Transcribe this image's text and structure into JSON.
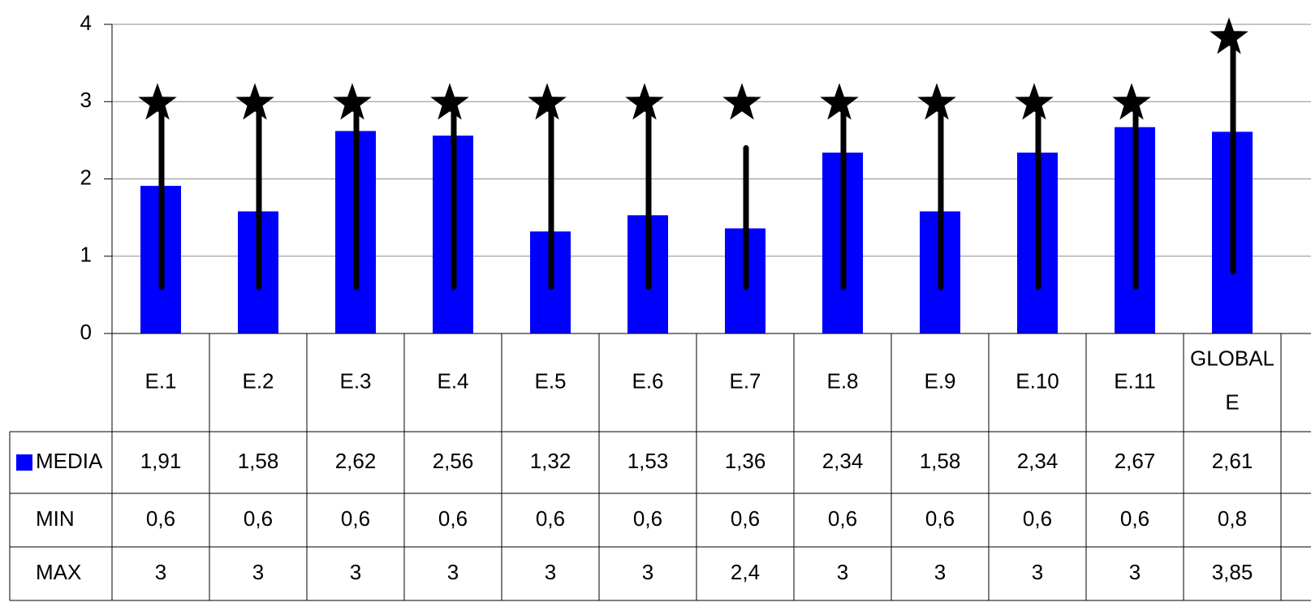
{
  "chart_data": {
    "type": "bar",
    "categories": [
      "E.1",
      "E.2",
      "E.3",
      "E.4",
      "E.5",
      "E.6",
      "E.7",
      "E.8",
      "E.9",
      "E.10",
      "E.11",
      "GLOBALE"
    ],
    "category_label_lines": [
      [
        "E.1"
      ],
      [
        "E.2"
      ],
      [
        "E.3"
      ],
      [
        "E.4"
      ],
      [
        "E.5"
      ],
      [
        "E.6"
      ],
      [
        "E.7"
      ],
      [
        "E.8"
      ],
      [
        "E.9"
      ],
      [
        "E.10"
      ],
      [
        "E.11"
      ],
      [
        "GLOBAL",
        "E"
      ]
    ],
    "ylim": [
      0,
      4
    ],
    "yticks": [
      "0",
      "1",
      "2",
      "3",
      "4"
    ],
    "grid": true,
    "series": [
      {
        "name": "MEDIA",
        "role": "bar",
        "color": "#0000ff",
        "values": [
          1.91,
          1.58,
          2.62,
          2.56,
          1.32,
          1.53,
          1.36,
          2.34,
          1.58,
          2.34,
          2.67,
          2.61
        ]
      },
      {
        "name": "MIN",
        "role": "range-low",
        "values": [
          0.6,
          0.6,
          0.6,
          0.6,
          0.6,
          0.6,
          0.6,
          0.6,
          0.6,
          0.6,
          0.6,
          0.8
        ]
      },
      {
        "name": "MAX",
        "role": "range-high-star",
        "values": [
          3,
          3,
          3,
          3,
          3,
          3,
          2.4,
          3,
          3,
          3,
          3,
          3.85
        ]
      }
    ],
    "table": {
      "rows": [
        {
          "label": "MEDIA",
          "legend_color": "#0000ff",
          "cells": [
            "1,91",
            "1,58",
            "2,62",
            "2,56",
            "1,32",
            "1,53",
            "1,36",
            "2,34",
            "1,58",
            "2,34",
            "2,67",
            "2,61"
          ]
        },
        {
          "label": "MIN",
          "cells": [
            "0,6",
            "0,6",
            "0,6",
            "0,6",
            "0,6",
            "0,6",
            "0,6",
            "0,6",
            "0,6",
            "0,6",
            "0,6",
            "0,8"
          ]
        },
        {
          "label": "MAX",
          "cells": [
            "3",
            "3",
            "3",
            "3",
            "3",
            "3",
            "2,4",
            "3",
            "3",
            "3",
            "3",
            "3,85"
          ]
        }
      ]
    }
  }
}
